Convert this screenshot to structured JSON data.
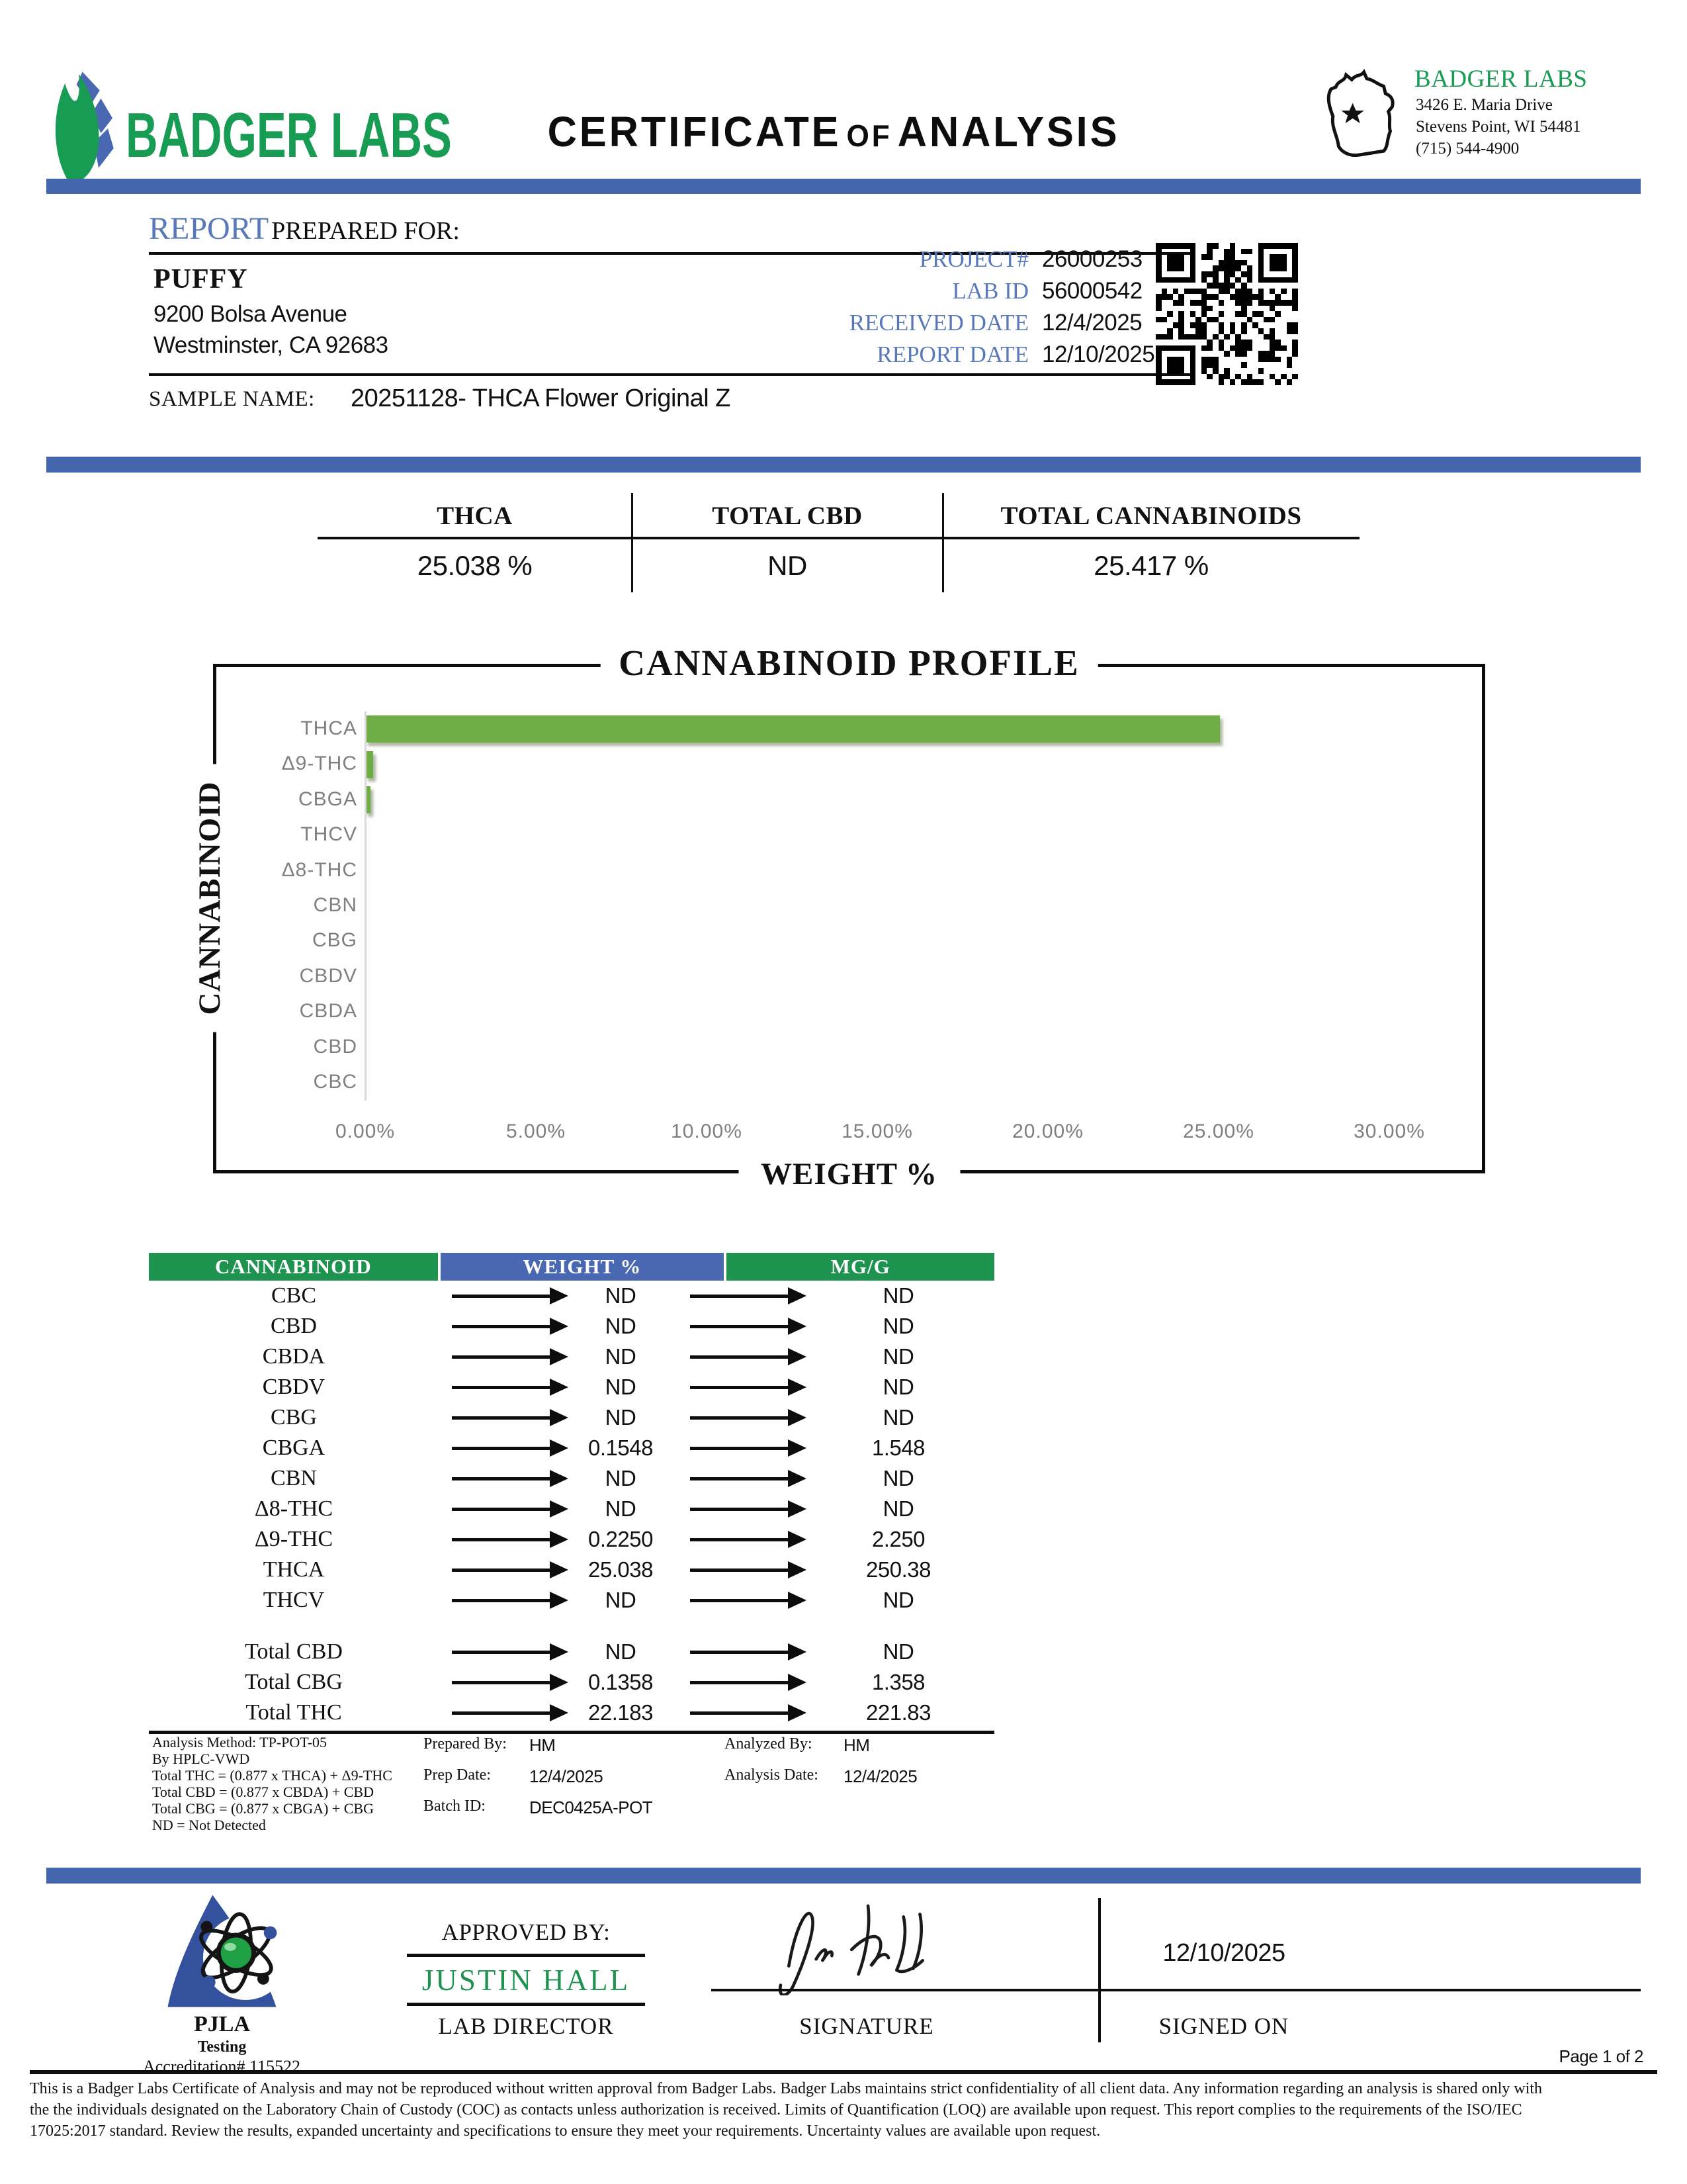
{
  "header": {
    "brand": "BADGER LABS",
    "title_big1": "CERTIFICATE",
    "title_small": "OF",
    "title_big2": "ANALYSIS",
    "lab_name": "BADGER LABS",
    "address_line1": "3426 E. Maria Drive",
    "address_line2": "Stevens Point, WI 54481",
    "phone": "(715) 544-4900",
    "accent_green": "#189b52",
    "accent_blue": "#4466ad"
  },
  "report": {
    "section_word": "REPORT",
    "section_rest": "PREPARED FOR:",
    "client_name": "PUFFY",
    "client_address1": "9200 Bolsa Avenue",
    "client_address2": "Westminster, CA 92683",
    "meta": [
      {
        "label": "PROJECT#",
        "value": "26000253"
      },
      {
        "label": "LAB ID",
        "value": "56000542"
      },
      {
        "label": "RECEIVED DATE",
        "value": "12/4/2025"
      },
      {
        "label": "REPORT DATE",
        "value": "12/10/2025"
      }
    ],
    "sample_name_label": "SAMPLE NAME:",
    "sample_name": "20251128- THCA Flower Original Z"
  },
  "summary": {
    "columns": [
      {
        "label": "THCA",
        "value": "25.038 %"
      },
      {
        "label": "TOTAL CBD",
        "value": "ND"
      },
      {
        "label": "TOTAL CANNABINOIDS",
        "value": "25.417 %"
      }
    ]
  },
  "chart_data": {
    "type": "bar",
    "orientation": "horizontal",
    "title": "CANNABINOID PROFILE",
    "xlabel": "WEIGHT %",
    "ylabel": "CANNABINOID",
    "categories": [
      "THCA",
      "Δ9-THC",
      "CBGA",
      "THCV",
      "Δ8-THC",
      "CBN",
      "CBG",
      "CBDV",
      "CBDA",
      "CBD",
      "CBC"
    ],
    "values": [
      25.038,
      0.225,
      0.1548,
      0,
      0,
      0,
      0,
      0,
      0,
      0,
      0
    ],
    "xlim": [
      0,
      30
    ],
    "x_ticks": [
      "0.00%",
      "5.00%",
      "10.00%",
      "15.00%",
      "20.00%",
      "25.00%",
      "30.00%"
    ],
    "bar_color": "#70ad47",
    "grid": false,
    "legend": "none"
  },
  "results_table": {
    "headers": [
      "CANNABINOID",
      "WEIGHT %",
      "MG/G"
    ],
    "header_colors": [
      "#1e9350",
      "#4a67b2",
      "#1e9350"
    ],
    "rows": [
      {
        "name": "CBC",
        "weight": "ND",
        "mgg": "ND"
      },
      {
        "name": "CBD",
        "weight": "ND",
        "mgg": "ND"
      },
      {
        "name": "CBDA",
        "weight": "ND",
        "mgg": "ND"
      },
      {
        "name": "CBDV",
        "weight": "ND",
        "mgg": "ND"
      },
      {
        "name": "CBG",
        "weight": "ND",
        "mgg": "ND"
      },
      {
        "name": "CBGA",
        "weight": "0.1548",
        "mgg": "1.548"
      },
      {
        "name": "CBN",
        "weight": "ND",
        "mgg": "ND"
      },
      {
        "name": "Δ8-THC",
        "weight": "ND",
        "mgg": "ND"
      },
      {
        "name": "Δ9-THC",
        "weight": "0.2250",
        "mgg": "2.250"
      },
      {
        "name": "THCA",
        "weight": "25.038",
        "mgg": "250.38"
      },
      {
        "name": "THCV",
        "weight": "ND",
        "mgg": "ND"
      },
      {
        "spacer": true
      },
      {
        "name": "Total CBD",
        "weight": "ND",
        "mgg": "ND"
      },
      {
        "name": "Total CBG",
        "weight": "0.1358",
        "mgg": "1.358"
      },
      {
        "name": "Total THC",
        "weight": "22.183",
        "mgg": "221.83"
      }
    ]
  },
  "notes": {
    "method_lines": [
      "Analysis Method: TP-POT-05",
      "By HPLC-VWD",
      "Total THC = (0.877 x  THCA) + Δ9-THC",
      "Total CBD = (0.877 x  CBDA) + CBD",
      "Total CBG = (0.877 x  CBGA) + CBG",
      "ND = Not Detected"
    ],
    "prepared": [
      {
        "label": "Prepared By:",
        "value": "HM"
      },
      {
        "label": "Prep Date:",
        "value": "12/4/2025"
      },
      {
        "label": "Batch ID:",
        "value": "DEC0425A-POT"
      }
    ],
    "analyzed": [
      {
        "label": "Analyzed By:",
        "value": "HM"
      },
      {
        "label": "Analysis Date:",
        "value": "12/4/2025"
      }
    ]
  },
  "approval": {
    "approved_by_label": "APPROVED BY:",
    "approver_name": "JUSTIN HALL",
    "approver_title": "LAB DIRECTOR",
    "signature_label": "SIGNATURE",
    "signed_on_label": "SIGNED ON",
    "signed_on_date": "12/10/2025"
  },
  "accreditation": {
    "org": "PJLA",
    "scope": "Testing",
    "number_line": "Accreditation# 115522"
  },
  "footer": {
    "page_number": "Page 1 of 2",
    "fine_print_lines": [
      "This is a Badger Labs Certificate of Analysis and may not be reproduced without written approval from Badger Labs. Badger Labs maintains strict confidentiality of all client data. Any information regarding an analysis is shared only with",
      "the the individuals designated on the Laboratory Chain of Custody (COC) as contacts unless authorization is received. Limits of Quantification (LOQ) are available upon request. This report complies to the requirements of the ISO/IEC",
      "17025:2017 standard. Review the results, expanded uncertainty and specifications to ensure they meet your requirements. Uncertainty values are available upon request."
    ]
  }
}
